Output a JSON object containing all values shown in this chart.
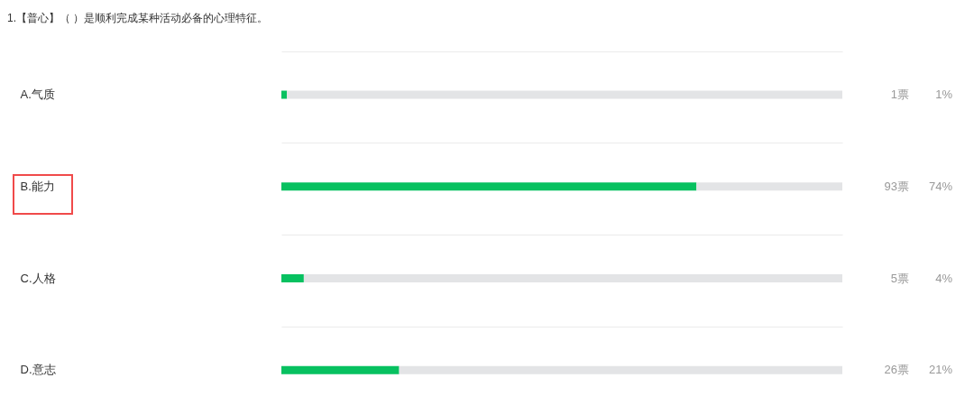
{
  "chart_data": {
    "type": "bar",
    "orientation": "horizontal",
    "stacked": true,
    "title": "1.【普心】（ ）是顺利完成某种活动必备的心理特征。",
    "categories": [
      "A.气质",
      "B.能力",
      "C.人格",
      "D.意志"
    ],
    "series": [
      {
        "color": "#07c160",
        "values": [
          1,
          74,
          4,
          21
        ],
        "value_labels": [
          "1%",
          "74%",
          "4%",
          "21%"
        ]
      },
      {
        "color": "#e3e4e6",
        "values": [
          99,
          26,
          96,
          79
        ]
      }
    ],
    "xlim": [
      0,
      100
    ],
    "tick_labels": "y",
    "grid": "y",
    "annotations": [
      "1票",
      "93票",
      "5票",
      "26票"
    ]
  }
}
